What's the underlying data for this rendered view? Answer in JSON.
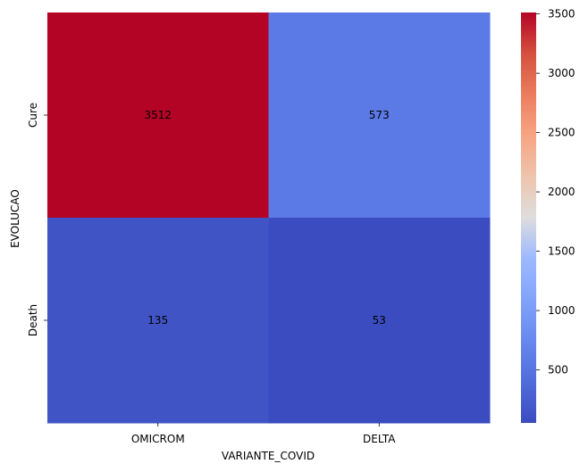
{
  "chart_data": {
    "type": "heatmap",
    "title": "",
    "xlabel": "VARIANTE_COVID",
    "ylabel": "EVOLUCAO",
    "x_categories": [
      "OMICROM",
      "DELTA"
    ],
    "y_categories": [
      "Cure",
      "Death"
    ],
    "values": [
      [
        3512,
        573
      ],
      [
        135,
        53
      ]
    ],
    "colormap": "coolwarm",
    "colorbar": {
      "min": 53,
      "max": 3512,
      "ticks": [
        500,
        1000,
        1500,
        2000,
        2500,
        3000,
        3500
      ]
    },
    "annotate": true
  }
}
